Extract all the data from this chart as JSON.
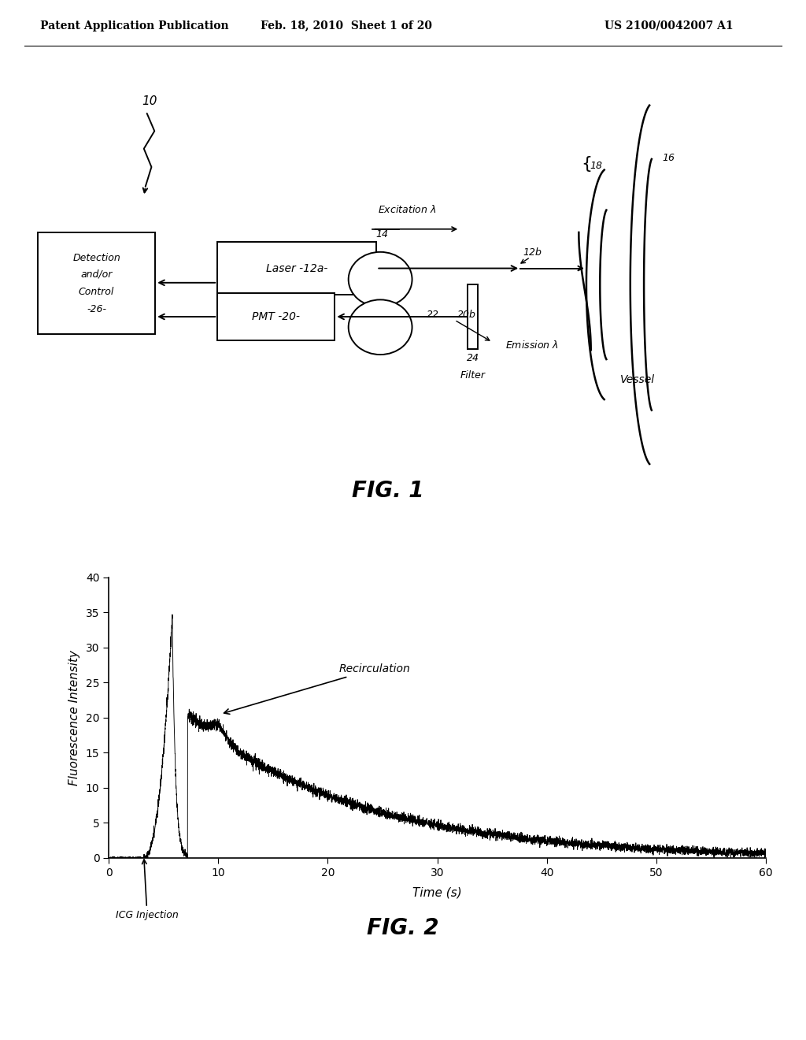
{
  "header_left": "Patent Application Publication",
  "header_mid": "Feb. 18, 2010  Sheet 1 of 20",
  "header_right": "US 2100/0042007 A1",
  "fig1_caption": "FIG. 1",
  "fig2_caption": "FIG. 2",
  "fig2_xlabel": "Time (s)",
  "fig2_ylabel": "Fluorescence Intensity",
  "fig2_xlim": [
    0,
    60
  ],
  "fig2_ylim": [
    0,
    40
  ],
  "fig2_xticks": [
    0,
    10,
    20,
    30,
    40,
    50,
    60
  ],
  "fig2_yticks": [
    0,
    5,
    10,
    15,
    20,
    25,
    30,
    35,
    40
  ],
  "fig2_annotation_recirculation": "Recirculation",
  "fig2_annotation_icg": "ICG Injection",
  "background_color": "#ffffff",
  "line_color": "#000000",
  "header_fontsize": 10,
  "caption_fontsize": 20
}
